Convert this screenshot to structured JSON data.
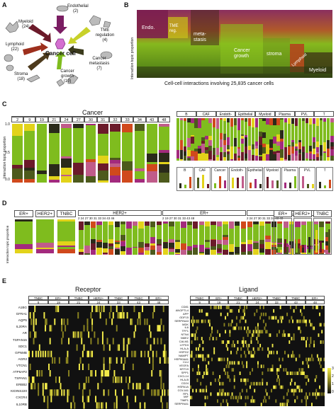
{
  "panels": {
    "a": {
      "label": "A",
      "center": "Cancer cell",
      "nodes": [
        {
          "name": "Endothelial",
          "count": "(2)"
        },
        {
          "name": "Myeloid",
          "count": "(24)"
        },
        {
          "name": "TME regulation",
          "count": "(4)"
        },
        {
          "name": "Lymphoid",
          "count": "(22)"
        },
        {
          "name": "Cancer metastasis",
          "count": "(7)"
        },
        {
          "name": "Stroma",
          "count": "(18)"
        },
        {
          "name": "Cancer growth",
          "count": "(10)"
        }
      ]
    },
    "b": {
      "label": "B",
      "ylabel": "Interaction topic proportion",
      "xlabel": "Cell-cell interactions involving 25,835 cancer cells",
      "regions": [
        "Endo.",
        "TME reg.",
        "meta-stasis",
        "Cancer growth",
        "stroma",
        "Lymphoid",
        "Myeloid"
      ]
    },
    "c": {
      "label": "C",
      "title": "Cancer",
      "ylabel": "Interaction topic proportion",
      "samples": [
        "2",
        "9",
        "19",
        "21",
        "24",
        "27",
        "30",
        "31",
        "32",
        "33",
        "34",
        "43",
        "48"
      ],
      "yticks": [
        "1.0",
        "0.5",
        "0.0"
      ],
      "right_groups": [
        "B",
        "CAF",
        "Endoth-",
        "Epithelial",
        "Myeloid",
        "Plasma",
        "PVL",
        "T"
      ],
      "lower_types": [
        "B",
        "CAF",
        "Cancer",
        "Endoth-",
        "Epithelial",
        "Myeloid",
        "Plasma",
        "PVL",
        "T"
      ]
    },
    "d": {
      "label": "D",
      "subtypes_left": [
        "ER+",
        "HER2+",
        "TNBC"
      ],
      "ylabel": "Interaction topic proportion",
      "groups": [
        "HER2+",
        "ER+",
        "TNBC"
      ],
      "group_samples": [
        "2 24 27 30 31 33 34 43 46",
        "2 19 27 30 31 33 43 48",
        "2 24 27 30 31 33 34 43 48"
      ],
      "subtypes_right": [
        "ER+",
        "HER2+",
        "TNBC"
      ]
    },
    "e": {
      "label": "E",
      "receptor_title": "Receptor",
      "ligand_title": "Ligand",
      "receptor_header": [
        "TNBC",
        "ER+",
        "TNBC",
        "HER2+",
        "TNBC",
        "TNBC",
        "ER+"
      ],
      "receptor_header_nums": [
        "9",
        "19",
        "21",
        "24",
        "33",
        "43",
        "48"
      ],
      "ligand_header": [
        "TNBC",
        "ER+",
        "TNBC",
        "HER2+",
        "TNBC",
        "TNBC",
        "ER+"
      ],
      "ligand_header_nums": [
        "9",
        "19",
        "21",
        "24",
        "33",
        "43",
        "48"
      ],
      "receptor_genes": [
        "A1BG",
        "GFRA1",
        "AQP5",
        "IL20RA",
        "AR",
        "TSPAN15",
        "SDC1",
        "GPNMB",
        "AGR2",
        "VTCN1",
        "ATP6AP2",
        "TSPAN1",
        "ERBB2",
        "KIDINS220",
        "CXCR4",
        "IL10RB"
      ],
      "ligand_genes": [
        "CD81",
        "ANGPTL4",
        "APP",
        "GDF15",
        "SERPINA3",
        "MDK",
        "IL6",
        "TFF1",
        "NTN4",
        "NME2",
        "CALM1",
        "LYPD3",
        "HLA-A",
        "HSPG2",
        "NAMPT",
        "HSP90AA1",
        "CLU",
        "VEGFA",
        "KRT19",
        "SPP1",
        "CXCL14",
        "HLA-B",
        "CD24",
        "HSPA1A",
        "COL1A1",
        "RPL",
        "MIF",
        "TIMP1",
        "SERPINA1"
      ],
      "legend_ticks": [
        "3",
        "2",
        "1",
        "0"
      ]
    }
  },
  "colors": {
    "green": "#7fbc1e",
    "maroon": "#6b1a2a",
    "orange": "#d0491c",
    "yellow": "#e2d31a",
    "magenta": "#a32a7d",
    "dark": "#2a2a1a",
    "olive": "#4d5a1c",
    "pink": "#c05c8a"
  }
}
